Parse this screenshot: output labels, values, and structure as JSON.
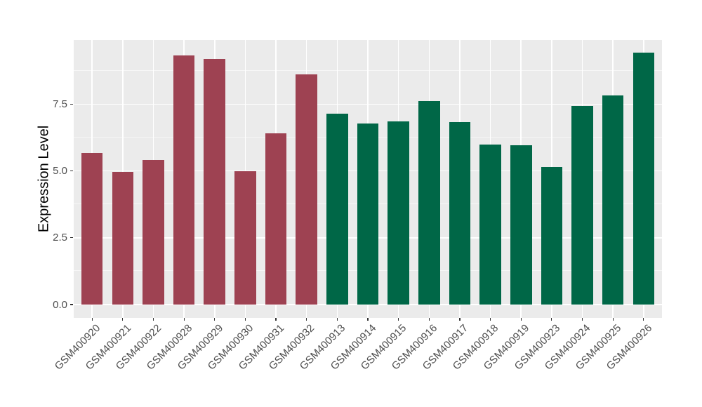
{
  "chart_data": {
    "type": "bar",
    "title": "",
    "xlabel": "",
    "ylabel": "Expression Level",
    "ylim": [
      0,
      9.9
    ],
    "yticks": [
      0,
      2.5,
      5,
      7.5
    ],
    "ytick_labels": [
      "0.0",
      "2.5",
      "5.0",
      "7.5"
    ],
    "yticks_minor": [
      1.25,
      3.75,
      6.25,
      8.75
    ],
    "grid": "horizontal major+minor, vertical major at each category",
    "legend_position": "none",
    "categories": [
      "GSM400920",
      "GSM400921",
      "GSM400922",
      "GSM400928",
      "GSM400929",
      "GSM400930",
      "GSM400931",
      "GSM400932",
      "GSM400913",
      "GSM400914",
      "GSM400915",
      "GSM400916",
      "GSM400917",
      "GSM400918",
      "GSM400919",
      "GSM400923",
      "GSM400924",
      "GSM400925",
      "GSM400926"
    ],
    "values": [
      5.68,
      4.95,
      5.4,
      9.32,
      9.19,
      5.0,
      6.4,
      8.6,
      7.14,
      6.77,
      6.85,
      7.62,
      6.82,
      5.98,
      5.96,
      5.14,
      7.43,
      7.82,
      9.42
    ],
    "groups": [
      "maroon",
      "maroon",
      "maroon",
      "maroon",
      "maroon",
      "maroon",
      "maroon",
      "maroon",
      "green",
      "green",
      "green",
      "green",
      "green",
      "green",
      "green",
      "green",
      "green",
      "green",
      "green"
    ],
    "group_colors": {
      "maroon": "#9E4252",
      "green": "#006747"
    },
    "panel_bg": "#EBEBEB",
    "grid_color": "#FFFFFF",
    "axis_text_color": "#4D4D4D",
    "axis_title_color": "#000000",
    "tick_color": "#333333"
  }
}
